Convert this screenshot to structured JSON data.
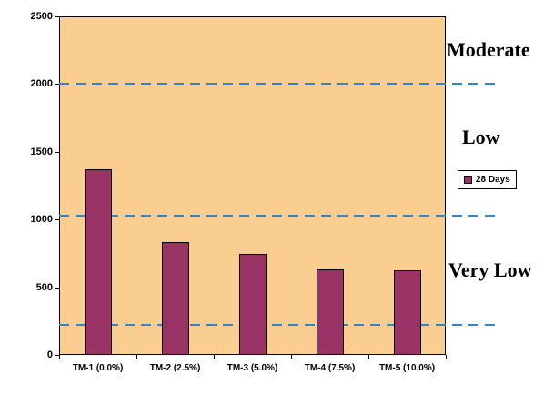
{
  "chart_data": {
    "type": "bar",
    "categories": [
      "TM-1 (0.0%)",
      "TM-2 (2.5%)",
      "TM-3 (5.0%)",
      "TM-4 (7.5%)",
      "TM-5 (10.0%)"
    ],
    "series": [
      {
        "name": "28 Days",
        "values": [
          1370,
          830,
          745,
          635,
          625
        ]
      }
    ],
    "title": "",
    "xlabel": "",
    "ylabel": "",
    "ylim": [
      0,
      2500
    ],
    "yticks": [
      0,
      500,
      1000,
      1500,
      2000,
      2500
    ],
    "grid": false,
    "threshold_lines": [
      {
        "value": 2000
      },
      {
        "value": 1030
      },
      {
        "value": 220
      }
    ],
    "zone_labels": [
      "Moderate",
      "Low",
      "Very Low"
    ],
    "legend": {
      "label": "28 Days",
      "position": "right"
    },
    "colors": {
      "bar": "#993366",
      "plot_background": "#FACD91",
      "threshold_line": "#2E86D0",
      "text": "#000000"
    }
  }
}
